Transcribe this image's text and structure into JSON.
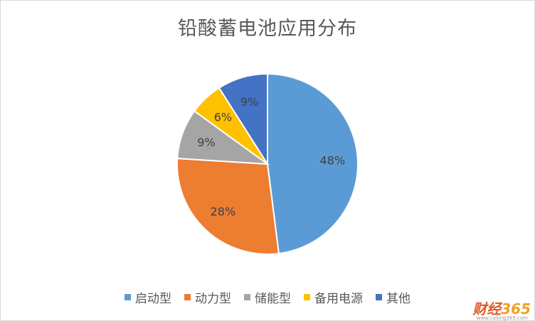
{
  "chart_data": {
    "type": "pie",
    "title": "铅酸蓄电池应用分布",
    "categories": [
      "启动型",
      "动力型",
      "储能型",
      "备用电源",
      "其他"
    ],
    "values": [
      48,
      28,
      9,
      6,
      9
    ],
    "labels": [
      "48%",
      "28%",
      "9%",
      "6%",
      "9%"
    ],
    "colors": [
      "#5b9bd5",
      "#ed7d31",
      "#a5a5a5",
      "#ffc000",
      "#4472c4"
    ],
    "legend_position": "bottom",
    "start": "12 o'clock, clockwise"
  },
  "branding": {
    "logo_text": "财经",
    "logo_number": "365",
    "url": "www.caijing365.com"
  }
}
